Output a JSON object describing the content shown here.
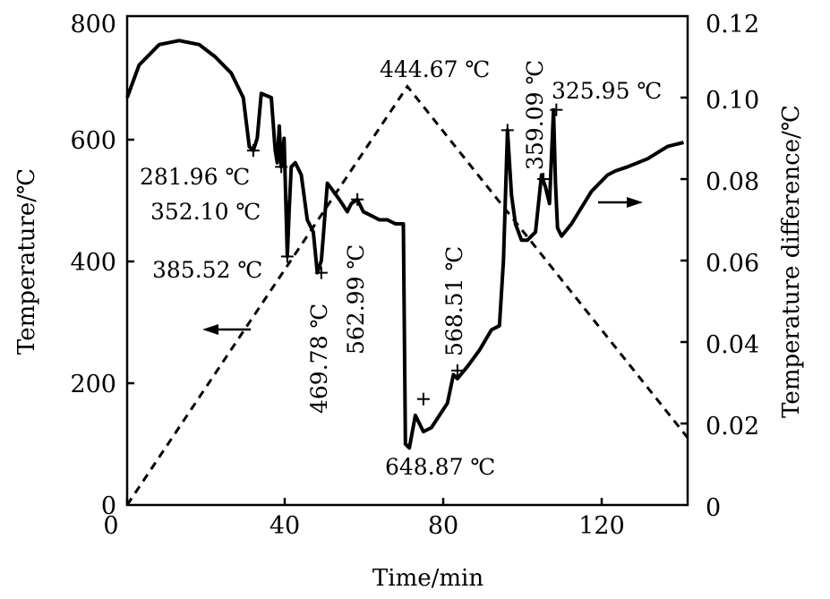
{
  "chart_data": {
    "type": "line",
    "xlabel": "Time/min",
    "ylabel_left": "Temperature/℃",
    "ylabel_right": "Temperature difference/℃",
    "x_ticks": [
      "0",
      "40",
      "80",
      "120"
    ],
    "y_left_ticks": [
      "0",
      "200",
      "400",
      "600",
      "800"
    ],
    "y_right_ticks": [
      "0",
      "0.02",
      "0.04",
      "0.06",
      "0.08",
      "0.10",
      "0.12"
    ],
    "xlim": [
      0,
      140
    ],
    "ylim_left": [
      0,
      800
    ],
    "ylim_right": [
      0,
      0.12
    ],
    "series": [
      {
        "axis": "left",
        "style": "dashed",
        "x": [
          0,
          70,
          140
        ],
        "y": [
          0,
          685,
          110
        ]
      },
      {
        "axis": "right",
        "style": "solid",
        "x": [
          0,
          3,
          8,
          13,
          18,
          22,
          26,
          29,
          30.5,
          31.5,
          32.5,
          33.5,
          36,
          37,
          37.5,
          38,
          38.5,
          39.2,
          40,
          40.5,
          41,
          42,
          43.5,
          45,
          46.5,
          47.5,
          48.5,
          49,
          50,
          51.5,
          53,
          55,
          56,
          57.5,
          59,
          61,
          63,
          65,
          67,
          69,
          69.5,
          70.5,
          72,
          74,
          76,
          78,
          80,
          81.5,
          82.5,
          85,
          88,
          91,
          93,
          94,
          95,
          96,
          97,
          98.5,
          100,
          102,
          103.5,
          104.5,
          105.5,
          106.5,
          107,
          107.5,
          108.5,
          111,
          116,
          120,
          122,
          125,
          130,
          135,
          139
        ],
        "y": [
          0.1,
          0.108,
          0.113,
          0.114,
          0.113,
          0.11,
          0.106,
          0.1,
          0.088,
          0.087,
          0.09,
          0.101,
          0.1,
          0.087,
          0.084,
          0.093,
          0.083,
          0.09,
          0.061,
          0.073,
          0.083,
          0.084,
          0.081,
          0.07,
          0.067,
          0.057,
          0.06,
          0.066,
          0.079,
          0.077,
          0.075,
          0.072,
          0.074,
          0.075,
          0.072,
          0.071,
          0.07,
          0.07,
          0.069,
          0.069,
          0.015,
          0.014,
          0.022,
          0.018,
          0.019,
          0.022,
          0.025,
          0.032,
          0.031,
          0.034,
          0.038,
          0.043,
          0.044,
          0.06,
          0.092,
          0.076,
          0.069,
          0.065,
          0.065,
          0.067,
          0.081,
          0.078,
          0.074,
          0.097,
          0.079,
          0.068,
          0.066,
          0.069,
          0.077,
          0.081,
          0.082,
          0.083,
          0.085,
          0.088,
          0.089
        ]
      }
    ],
    "markers": [
      {
        "x": 31.5,
        "y": 0.087
      },
      {
        "x": 38.5,
        "y": 0.083
      },
      {
        "x": 40,
        "y": 0.061
      },
      {
        "x": 48.5,
        "y": 0.057
      },
      {
        "x": 57.5,
        "y": 0.075
      },
      {
        "x": 74,
        "y": 0.026
      },
      {
        "x": 82.5,
        "y": 0.033
      },
      {
        "x": 95,
        "y": 0.092
      },
      {
        "x": 104,
        "y": 0.08
      },
      {
        "x": 107.2,
        "y": 0.097
      }
    ],
    "annotations": [
      "444.67 ℃",
      "281.96 ℃",
      "352.10 ℃",
      "385.52 ℃",
      "469.78 ℃",
      "562.99 ℃",
      "568.51 ℃",
      "648.87 ℃",
      "359.09 ℃",
      "325.95 ℃"
    ]
  }
}
